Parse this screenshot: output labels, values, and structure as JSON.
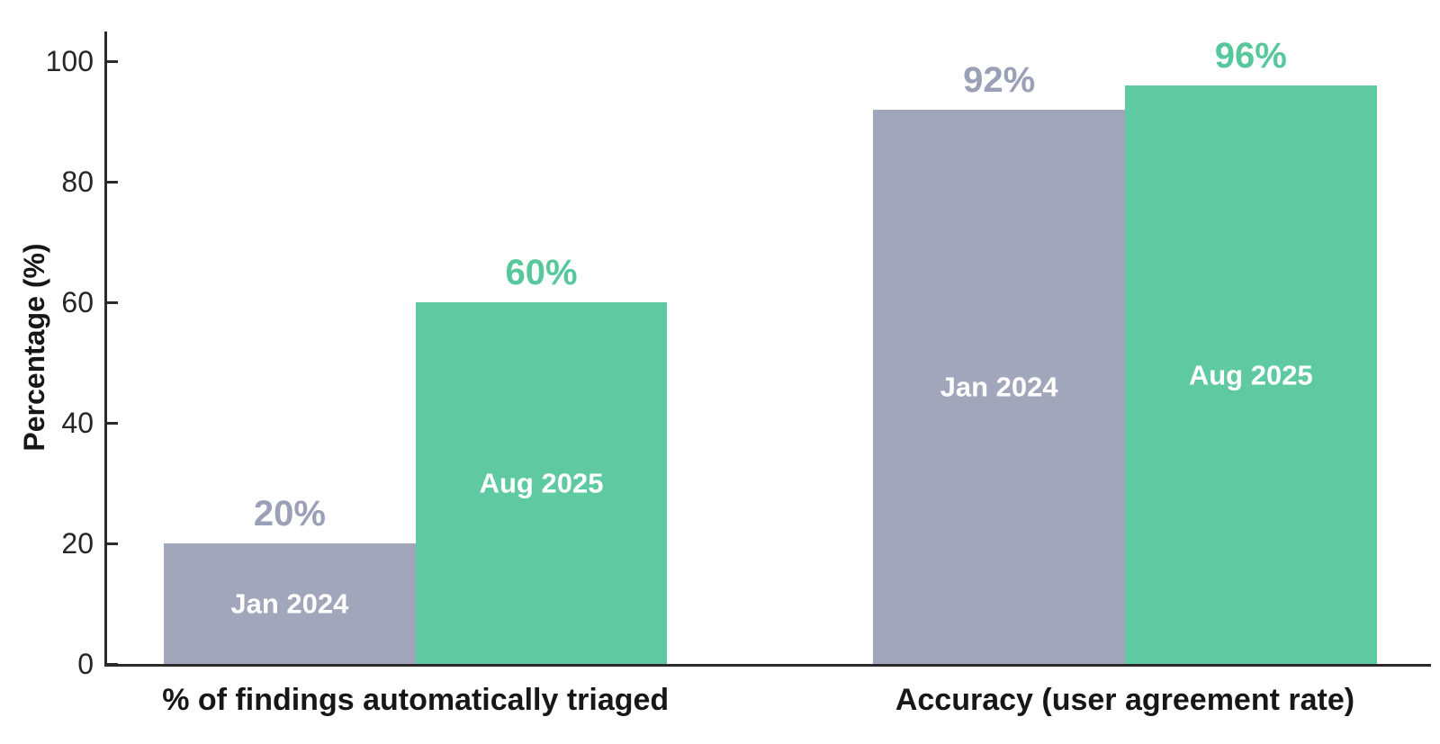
{
  "chart_data": {
    "type": "bar",
    "title": "",
    "xlabel": "",
    "ylabel": "Percentage (%)",
    "categories": [
      "% of findings automatically triaged",
      "Accuracy (user agreement rate)"
    ],
    "series": [
      {
        "name": "Jan 2024",
        "values": [
          20,
          92
        ],
        "value_labels": [
          "20%",
          "92%"
        ],
        "bar_color": "#a1a6ba",
        "value_label_color": "#9aa0b6",
        "inside_label_color": "#ffffff"
      },
      {
        "name": "Aug 2025",
        "values": [
          60,
          96
        ],
        "value_labels": [
          "60%",
          "96%"
        ],
        "bar_color": "#5fc9a2",
        "value_label_color": "#57c79c",
        "inside_label_color": "#ffffff"
      }
    ],
    "ylim": [
      0,
      105
    ],
    "yticks": [
      0,
      20,
      40,
      60,
      80,
      100
    ],
    "grid": false,
    "legend_position": "none (series names printed inside bars)",
    "axis_color": "#2a2a2a",
    "tick_label_color": "#262626",
    "tick_direction": "in",
    "background_color": "#ffffff"
  }
}
